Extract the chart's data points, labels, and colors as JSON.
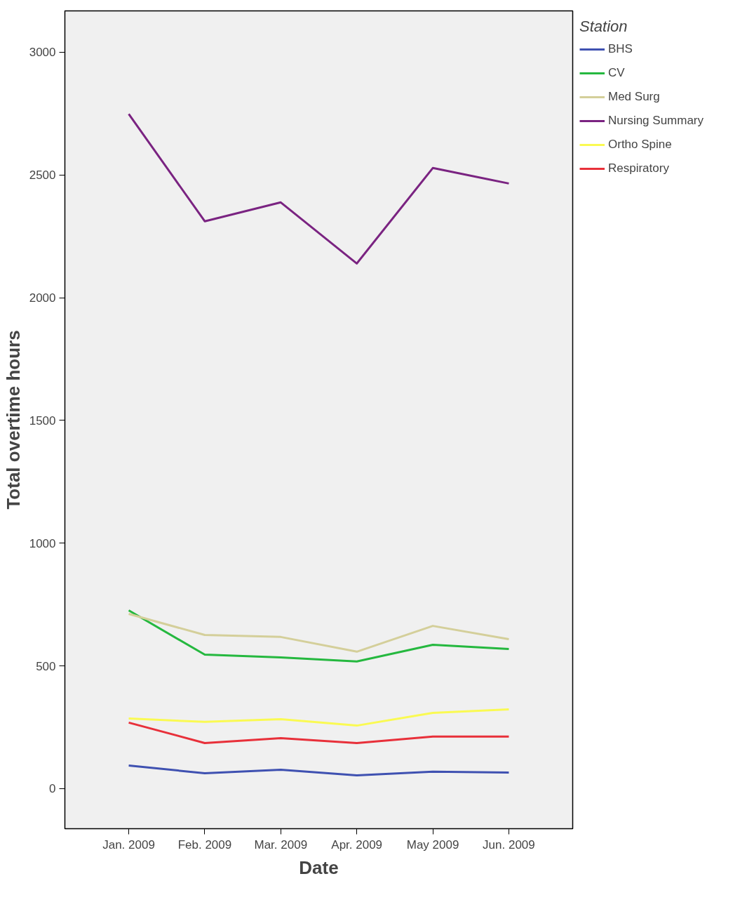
{
  "chart_data": {
    "type": "line",
    "xlabel": "Date",
    "ylabel": "Total overtime hours",
    "legend_title": "Station",
    "legend": "top right",
    "grid": false,
    "categories": [
      "Jan. 2009",
      "Feb. 2009",
      "Mar. 2009",
      "Apr. 2009",
      "May 2009",
      "Jun. 2009"
    ],
    "ylim": [
      -163,
      3168
    ],
    "yticks": [
      0,
      500,
      1000,
      1500,
      2000,
      2500,
      3000
    ],
    "series": [
      {
        "name": "BHS",
        "color": "#3f51b1",
        "values": [
          94,
          63,
          77,
          54,
          69,
          66
        ]
      },
      {
        "name": "CV",
        "color": "#25b83f",
        "values": [
          726,
          546,
          535,
          518,
          586,
          569
        ]
      },
      {
        "name": "Med Surg",
        "color": "#d4cf9a",
        "values": [
          712,
          626,
          618,
          558,
          663,
          609
        ]
      },
      {
        "name": "Nursing Summary",
        "color": "#7a2381",
        "values": [
          2748,
          2311,
          2388,
          2139,
          2528,
          2465
        ]
      },
      {
        "name": "Ortho Spine",
        "color": "#fafa52",
        "values": [
          286,
          272,
          283,
          257,
          309,
          323
        ]
      },
      {
        "name": "Respiratory",
        "color": "#e8303a",
        "values": [
          269,
          186,
          206,
          186,
          212,
          212
        ]
      }
    ]
  }
}
